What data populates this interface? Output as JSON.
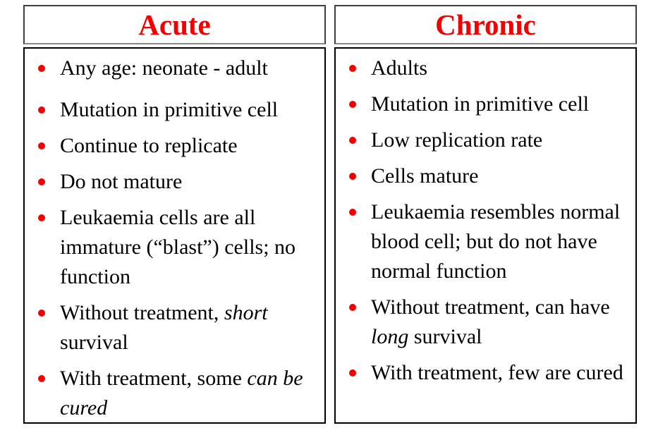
{
  "colors": {
    "accent_red": "#f40000",
    "body_text": "#000000",
    "header_border": "#3f3f3f",
    "header_border_bottom": "#8a8a8a",
    "body_border": "#000000",
    "background": "#ffffff"
  },
  "columns": [
    {
      "header": "Acute",
      "items": [
        {
          "segments": [
            {
              "t": "Any age: neonate - adult"
            }
          ]
        },
        {
          "segments": [
            {
              "t": "Mutation in primitive cell"
            }
          ]
        },
        {
          "segments": [
            {
              "t": "Continue to replicate"
            }
          ]
        },
        {
          "segments": [
            {
              "t": "Do not mature"
            }
          ]
        },
        {
          "segments": [
            {
              "t": "Leukaemia cells are all immature (“blast”) cells; no function"
            }
          ]
        },
        {
          "segments": [
            {
              "t": "Without treatment, "
            },
            {
              "t": "short",
              "i": true
            },
            {
              "t": " survival"
            }
          ]
        },
        {
          "segments": [
            {
              "t": "With treatment, some "
            },
            {
              "t": "can be cured",
              "i": true
            }
          ]
        }
      ]
    },
    {
      "header": "Chronic",
      "items": [
        {
          "segments": [
            {
              "t": "Adults"
            }
          ]
        },
        {
          "segments": [
            {
              "t": "Mutation in primitive cell"
            }
          ]
        },
        {
          "segments": [
            {
              "t": "Low replication rate"
            }
          ]
        },
        {
          "segments": [
            {
              "t": "Cells mature"
            }
          ]
        },
        {
          "segments": [
            {
              "t": "Leukaemia resembles normal blood cell; but do not have normal function"
            }
          ]
        },
        {
          "segments": [
            {
              "t": "Without treatment, can have "
            },
            {
              "t": "long",
              "i": true
            },
            {
              "t": " survival"
            }
          ]
        },
        {
          "segments": [
            {
              "t": "With treatment, few are cured"
            }
          ]
        }
      ]
    }
  ]
}
